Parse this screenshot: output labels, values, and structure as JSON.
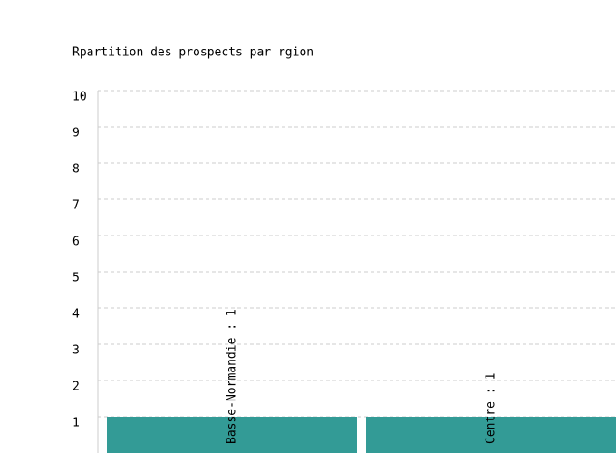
{
  "chart_data": {
    "type": "bar",
    "title": "Rpartition des prospects par rgion",
    "values": [
      1,
      1
    ],
    "value_labels": [
      "Basse-Normandie : 1",
      "Centre : 1"
    ],
    "color": "#339b96",
    "ylim": [
      0,
      10
    ],
    "yticks": [
      1,
      2,
      3,
      4,
      5,
      6,
      7,
      8,
      9,
      10
    ],
    "grid": true
  }
}
